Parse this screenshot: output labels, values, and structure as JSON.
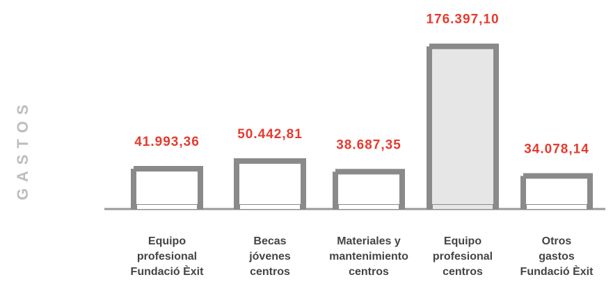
{
  "chart_data": {
    "type": "bar",
    "ylabel": "GASTOS",
    "categories": [
      "Equipo\nprofesional\nFundació Èxit",
      "Becas\njóvenes\ncentros",
      "Materiales y\nmantenimiento\ncentros",
      "Equipo\nprofesional\ncentros",
      "Otros\ngastos\nFundació Èxit"
    ],
    "values": [
      41993.36,
      50442.81,
      38687.35,
      176397.1,
      34078.14
    ],
    "value_labels": [
      "41.993,36",
      "50.442,81",
      "38.687,35",
      "176.397,10",
      "34.078,14"
    ],
    "colors": [
      "#ffffff",
      "#ffffff",
      "#ffffff",
      "#e6e6e6",
      "#ffffff"
    ],
    "ylim": [
      0,
      180000
    ]
  }
}
